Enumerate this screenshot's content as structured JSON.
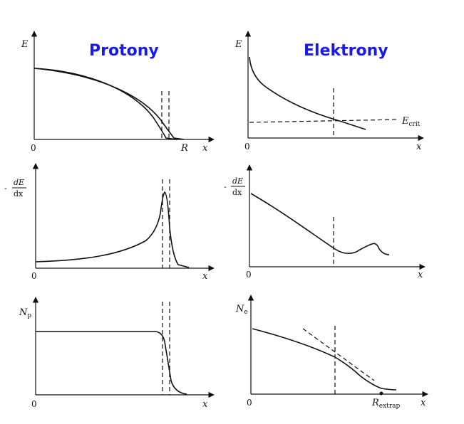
{
  "titles": {
    "left": "Protony",
    "right": "Elektrony"
  },
  "labels": {
    "E": "E",
    "x": "x",
    "zero": "0",
    "R": "R",
    "E_crit_main": "E",
    "E_crit_sub": "crit",
    "dEdx_minus": "-",
    "dEdx_num": "dE",
    "dEdx_den": "dx",
    "Np_main": "N",
    "Np_sub": "p",
    "Ne_main": "N",
    "Ne_sub": "e",
    "Rextrap_main": "R",
    "Rextrap_sub": "extrap"
  }
}
